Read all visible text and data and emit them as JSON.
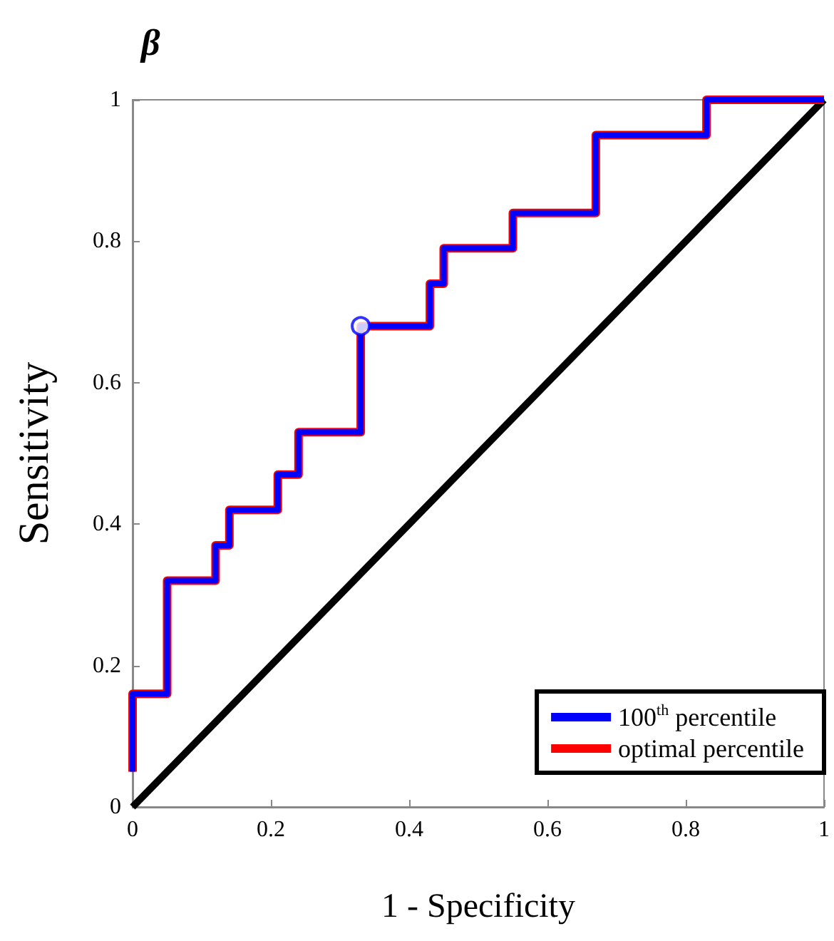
{
  "chart_data": {
    "type": "line",
    "title": "β",
    "xlabel": "1 - Specificity",
    "ylabel": "Sensitivity",
    "xlim": [
      0,
      1
    ],
    "ylim": [
      0,
      1
    ],
    "xticks": [
      0,
      0.2,
      0.4,
      0.6,
      0.8,
      1
    ],
    "yticks": [
      0,
      0.2,
      0.4,
      0.6,
      0.8,
      1
    ],
    "grid": false,
    "legend": "bottom right",
    "marker": "none",
    "line_style": "solid",
    "series": [
      {
        "name": "100$^{th}$ percentile",
        "color": "#0000ff",
        "x": [
          0,
          0,
          0.05,
          0.05,
          0.12,
          0.12,
          0.14,
          0.14,
          0.21,
          0.21,
          0.24,
          0.24,
          0.33,
          0.33,
          0.43,
          0.43,
          0.45,
          0.45,
          0.55,
          0.55,
          0.67,
          0.67,
          0.83,
          0.83,
          1
        ],
        "values": [
          0.05,
          0.16,
          0.16,
          0.32,
          0.32,
          0.37,
          0.37,
          0.42,
          0.42,
          0.47,
          0.47,
          0.53,
          0.53,
          0.68,
          0.68,
          0.74,
          0.74,
          0.79,
          0.79,
          0.84,
          0.84,
          0.95,
          0.95,
          1,
          1
        ]
      },
      {
        "name": "optimal percentile",
        "color": "#ff0000",
        "x": [
          0,
          0,
          0.05,
          0.05,
          0.12,
          0.12,
          0.14,
          0.14,
          0.21,
          0.21,
          0.24,
          0.24,
          0.33,
          0.33,
          0.43,
          0.43,
          0.45,
          0.45,
          0.55,
          0.55,
          0.67,
          0.67,
          0.83,
          0.83,
          1
        ],
        "values": [
          0.05,
          0.16,
          0.16,
          0.32,
          0.32,
          0.37,
          0.37,
          0.42,
          0.42,
          0.47,
          0.47,
          0.53,
          0.53,
          0.68,
          0.68,
          0.74,
          0.74,
          0.79,
          0.79,
          0.84,
          0.84,
          0.95,
          0.95,
          1,
          1
        ]
      },
      {
        "color": "#000000",
        "x": [
          0,
          1
        ],
        "values": [
          0,
          1
        ]
      },
      {
        "type": "scatter",
        "color": "#0000ff",
        "marker": "circle",
        "x": [
          0.33
        ],
        "values": [
          0.68
        ]
      }
    ]
  }
}
